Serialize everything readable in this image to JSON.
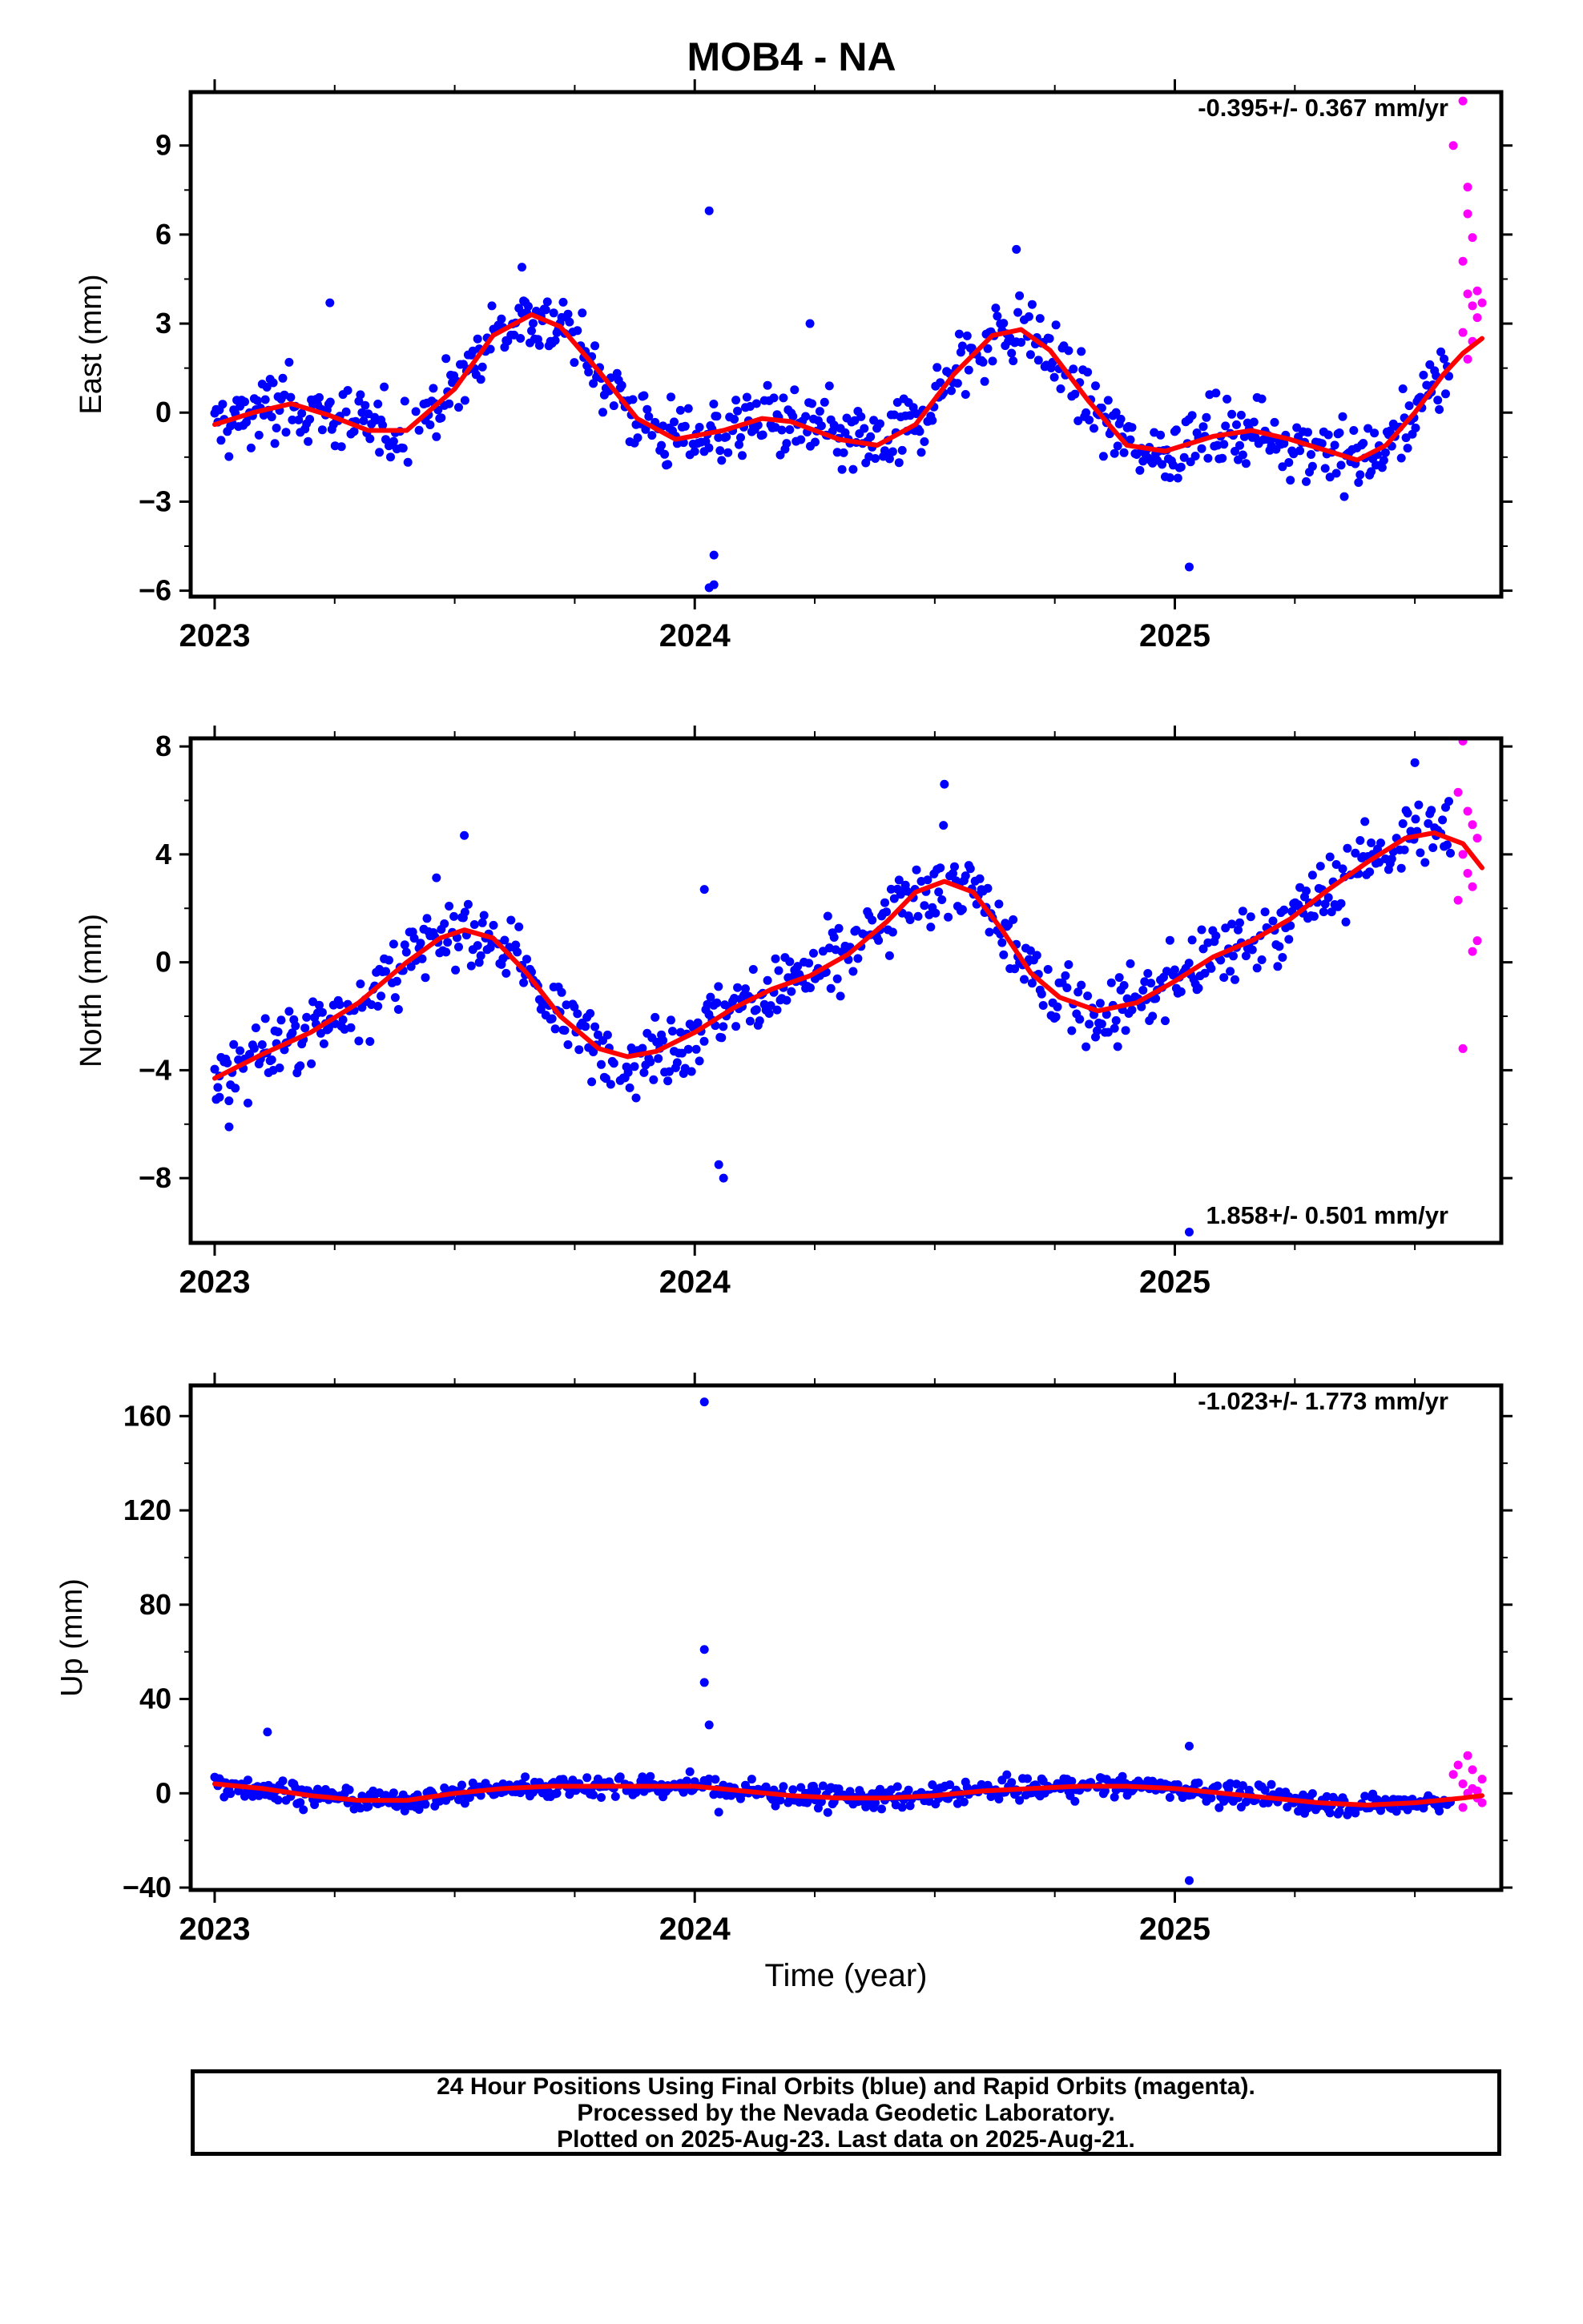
{
  "title": "MOB4 - NA",
  "xlabel": "Time (year)",
  "caption": [
    "24 Hour Positions Using Final Orbits (blue) and Rapid Orbits (magenta).",
    "Processed by the Nevada Geodetic Laboratory.",
    "Plotted on 2025-Aug-23. Last data on 2025-Aug-21."
  ],
  "colors": {
    "final": "#0000ff",
    "rapid": "#ff00ff",
    "trend": "#ff0000",
    "axis": "#000000"
  },
  "chart_data": [
    {
      "type": "scatter",
      "ylabel": "East (mm)",
      "rate_label": "-0.395+/- 0.367 mm/yr",
      "xlim": [
        2022.95,
        2025.68
      ],
      "ylim": [
        -6.2,
        10.8
      ],
      "xticks": [
        2023,
        2024,
        2025
      ],
      "yticks": [
        -6,
        -3,
        0,
        3,
        6,
        9
      ],
      "trend": [
        [
          2023.0,
          -0.4
        ],
        [
          2023.08,
          0.0
        ],
        [
          2023.16,
          0.3
        ],
        [
          2023.24,
          -0.1
        ],
        [
          2023.32,
          -0.6
        ],
        [
          2023.4,
          -0.6
        ],
        [
          2023.5,
          0.8
        ],
        [
          2023.58,
          2.6
        ],
        [
          2023.66,
          3.3
        ],
        [
          2023.72,
          2.9
        ],
        [
          2023.8,
          1.4
        ],
        [
          2023.88,
          -0.2
        ],
        [
          2023.96,
          -0.9
        ],
        [
          2024.06,
          -0.6
        ],
        [
          2024.14,
          -0.2
        ],
        [
          2024.2,
          -0.3
        ],
        [
          2024.3,
          -0.9
        ],
        [
          2024.38,
          -1.1
        ],
        [
          2024.46,
          -0.4
        ],
        [
          2024.54,
          1.3
        ],
        [
          2024.62,
          2.6
        ],
        [
          2024.68,
          2.8
        ],
        [
          2024.74,
          2.1
        ],
        [
          2024.82,
          0.4
        ],
        [
          2024.9,
          -1.1
        ],
        [
          2024.98,
          -1.3
        ],
        [
          2025.08,
          -0.8
        ],
        [
          2025.16,
          -0.6
        ],
        [
          2025.24,
          -0.9
        ],
        [
          2025.32,
          -1.3
        ],
        [
          2025.38,
          -1.6
        ],
        [
          2025.44,
          -1.1
        ],
        [
          2025.5,
          0.0
        ],
        [
          2025.56,
          1.3
        ],
        [
          2025.6,
          2.0
        ],
        [
          2025.64,
          2.5
        ]
      ],
      "annotated_points": [
        {
          "x": 2024.03,
          "y": 6.8
        },
        {
          "x": 2024.04,
          "y": -4.8
        },
        {
          "x": 2024.04,
          "y": -5.8
        },
        {
          "x": 2024.03,
          "y": -5.9
        },
        {
          "x": 2025.03,
          "y": -5.2
        },
        {
          "x": 2023.64,
          "y": 4.9
        },
        {
          "x": 2024.67,
          "y": 5.5
        },
        {
          "x": 2023.24,
          "y": 3.7
        },
        {
          "x": 2024.24,
          "y": 3.0
        }
      ],
      "rapid_points": [
        {
          "x": 2025.58,
          "y": 9.0
        },
        {
          "x": 2025.6,
          "y": 10.5
        },
        {
          "x": 2025.61,
          "y": 7.6
        },
        {
          "x": 2025.61,
          "y": 6.7
        },
        {
          "x": 2025.62,
          "y": 5.9
        },
        {
          "x": 2025.6,
          "y": 5.1
        },
        {
          "x": 2025.61,
          "y": 4.0
        },
        {
          "x": 2025.62,
          "y": 3.6
        },
        {
          "x": 2025.63,
          "y": 3.2
        },
        {
          "x": 2025.62,
          "y": 2.4
        },
        {
          "x": 2025.61,
          "y": 1.8
        },
        {
          "x": 2025.6,
          "y": 2.7
        },
        {
          "x": 2025.63,
          "y": 4.1
        },
        {
          "x": 2025.64,
          "y": 3.7
        }
      ]
    },
    {
      "type": "scatter",
      "ylabel": "North (mm)",
      "rate_label": "1.858+/- 0.501 mm/yr",
      "xlim": [
        2022.95,
        2025.68
      ],
      "ylim": [
        -10.4,
        8.3
      ],
      "xticks": [
        2023,
        2024,
        2025
      ],
      "yticks": [
        -8,
        -4,
        0,
        4,
        8
      ],
      "trend": [
        [
          2023.0,
          -4.3
        ],
        [
          2023.1,
          -3.4
        ],
        [
          2023.2,
          -2.6
        ],
        [
          2023.3,
          -1.5
        ],
        [
          2023.4,
          0.0
        ],
        [
          2023.47,
          0.9
        ],
        [
          2023.52,
          1.2
        ],
        [
          2023.58,
          0.9
        ],
        [
          2023.65,
          -0.4
        ],
        [
          2023.72,
          -2.0
        ],
        [
          2023.8,
          -3.2
        ],
        [
          2023.86,
          -3.5
        ],
        [
          2023.92,
          -3.3
        ],
        [
          2024.0,
          -2.6
        ],
        [
          2024.08,
          -1.7
        ],
        [
          2024.16,
          -1.0
        ],
        [
          2024.24,
          -0.5
        ],
        [
          2024.32,
          0.3
        ],
        [
          2024.4,
          1.5
        ],
        [
          2024.46,
          2.6
        ],
        [
          2024.52,
          3.0
        ],
        [
          2024.58,
          2.6
        ],
        [
          2024.64,
          1.2
        ],
        [
          2024.7,
          -0.4
        ],
        [
          2024.76,
          -1.3
        ],
        [
          2024.84,
          -1.8
        ],
        [
          2024.92,
          -1.5
        ],
        [
          2025.0,
          -0.7
        ],
        [
          2025.08,
          0.2
        ],
        [
          2025.16,
          0.8
        ],
        [
          2025.24,
          1.6
        ],
        [
          2025.32,
          2.7
        ],
        [
          2025.4,
          3.7
        ],
        [
          2025.48,
          4.6
        ],
        [
          2025.54,
          4.8
        ],
        [
          2025.6,
          4.4
        ],
        [
          2025.64,
          3.5
        ]
      ],
      "annotated_points": [
        {
          "x": 2023.52,
          "y": 4.7
        },
        {
          "x": 2024.02,
          "y": 2.7
        },
        {
          "x": 2024.05,
          "y": -7.5
        },
        {
          "x": 2024.06,
          "y": -8.0
        },
        {
          "x": 2024.52,
          "y": 6.6
        },
        {
          "x": 2025.5,
          "y": 7.4
        },
        {
          "x": 2025.03,
          "y": -10.0
        },
        {
          "x": 2023.01,
          "y": -5.0
        },
        {
          "x": 2023.03,
          "y": -6.1
        }
      ],
      "rapid_points": [
        {
          "x": 2025.6,
          "y": 8.2
        },
        {
          "x": 2025.59,
          "y": 6.3
        },
        {
          "x": 2025.61,
          "y": 5.6
        },
        {
          "x": 2025.62,
          "y": 5.1
        },
        {
          "x": 2025.63,
          "y": 4.6
        },
        {
          "x": 2025.6,
          "y": 4.0
        },
        {
          "x": 2025.61,
          "y": 3.3
        },
        {
          "x": 2025.62,
          "y": 2.8
        },
        {
          "x": 2025.59,
          "y": 2.3
        },
        {
          "x": 2025.63,
          "y": 0.8
        },
        {
          "x": 2025.62,
          "y": 0.4
        },
        {
          "x": 2025.6,
          "y": -3.2
        }
      ]
    },
    {
      "type": "scatter",
      "ylabel": "Up (mm)",
      "rate_label": "-1.023+/- 1.773 mm/yr",
      "xlim": [
        2022.95,
        2025.68
      ],
      "ylim": [
        -41,
        173
      ],
      "xticks": [
        2023,
        2024,
        2025
      ],
      "yticks": [
        -40,
        0,
        40,
        80,
        120,
        160
      ],
      "trend": [
        [
          2023.0,
          4
        ],
        [
          2023.1,
          2
        ],
        [
          2023.2,
          -1
        ],
        [
          2023.3,
          -3
        ],
        [
          2023.4,
          -3
        ],
        [
          2023.5,
          0
        ],
        [
          2023.6,
          2
        ],
        [
          2023.7,
          3
        ],
        [
          2023.8,
          3
        ],
        [
          2023.9,
          3
        ],
        [
          2024.0,
          3
        ],
        [
          2024.1,
          1
        ],
        [
          2024.2,
          -1
        ],
        [
          2024.3,
          -2
        ],
        [
          2024.4,
          -2
        ],
        [
          2024.5,
          -1
        ],
        [
          2024.6,
          1
        ],
        [
          2024.7,
          2
        ],
        [
          2024.8,
          3
        ],
        [
          2024.9,
          3
        ],
        [
          2025.0,
          2
        ],
        [
          2025.1,
          0
        ],
        [
          2025.2,
          -2
        ],
        [
          2025.3,
          -4
        ],
        [
          2025.4,
          -5
        ],
        [
          2025.5,
          -4
        ],
        [
          2025.6,
          -2
        ],
        [
          2025.64,
          -1
        ]
      ],
      "annotated_points": [
        {
          "x": 2024.02,
          "y": 166
        },
        {
          "x": 2024.02,
          "y": 61
        },
        {
          "x": 2024.02,
          "y": 47
        },
        {
          "x": 2024.03,
          "y": 29
        },
        {
          "x": 2023.11,
          "y": 26
        },
        {
          "x": 2025.03,
          "y": -37
        },
        {
          "x": 2025.03,
          "y": 20
        },
        {
          "x": 2024.05,
          "y": -8
        }
      ],
      "rapid_points": [
        {
          "x": 2025.58,
          "y": 8
        },
        {
          "x": 2025.59,
          "y": 12
        },
        {
          "x": 2025.6,
          "y": 4
        },
        {
          "x": 2025.61,
          "y": 16
        },
        {
          "x": 2025.62,
          "y": 10
        },
        {
          "x": 2025.62,
          "y": 2
        },
        {
          "x": 2025.63,
          "y": -2
        },
        {
          "x": 2025.6,
          "y": -6
        },
        {
          "x": 2025.64,
          "y": 6
        },
        {
          "x": 2025.64,
          "y": -4
        },
        {
          "x": 2025.61,
          "y": 0
        },
        {
          "x": 2025.63,
          "y": 1
        }
      ]
    }
  ]
}
